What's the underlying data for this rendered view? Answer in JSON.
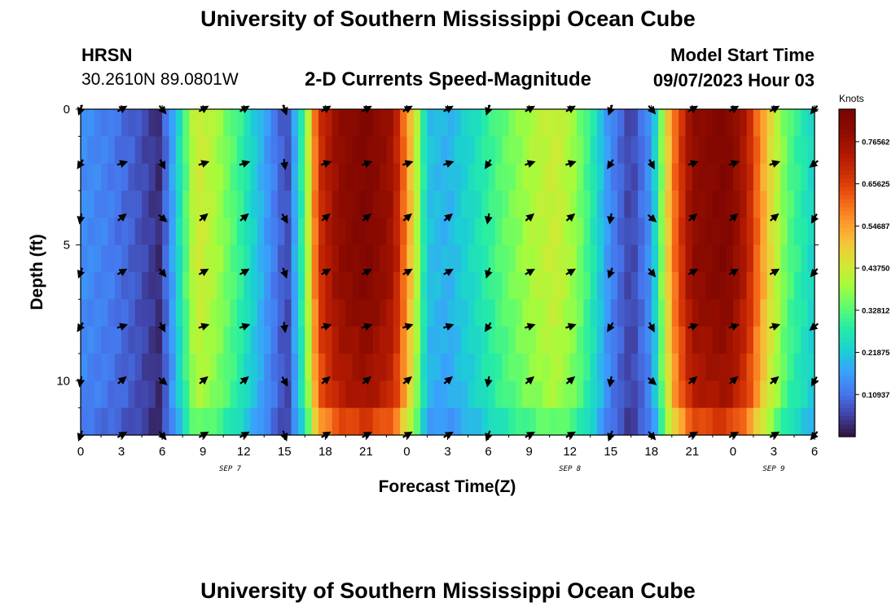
{
  "header": {
    "title": "University of Southern Mississippi Ocean Cube",
    "station": "HRSN",
    "coords": "30.2610N  89.0801W",
    "plot_title": "2-D Currents Speed-Magnitude",
    "model_start_label": "Model Start Time",
    "model_start_value": "09/07/2023 Hour 03"
  },
  "footer": {
    "title": "University of Southern Mississippi Ocean Cube"
  },
  "chart_data": {
    "type": "heatmap",
    "title": "2-D Currents Speed-Magnitude",
    "xlabel": "Forecast Time(Z)",
    "ylabel": "Depth (ft)",
    "x_range_hours": [
      0,
      54
    ],
    "y_range_ft": [
      0,
      12
    ],
    "y_reversed": true,
    "x_ticks": [
      {
        "h": 0,
        "label": "0"
      },
      {
        "h": 3,
        "label": "3"
      },
      {
        "h": 6,
        "label": "6"
      },
      {
        "h": 9,
        "label": "9"
      },
      {
        "h": 12,
        "label": "12"
      },
      {
        "h": 15,
        "label": "15"
      },
      {
        "h": 18,
        "label": "18"
      },
      {
        "h": 21,
        "label": "21"
      },
      {
        "h": 24,
        "label": "0"
      },
      {
        "h": 27,
        "label": "3"
      },
      {
        "h": 30,
        "label": "6"
      },
      {
        "h": 33,
        "label": "9"
      },
      {
        "h": 36,
        "label": "12"
      },
      {
        "h": 39,
        "label": "15"
      },
      {
        "h": 42,
        "label": "18"
      },
      {
        "h": 45,
        "label": "21"
      },
      {
        "h": 48,
        "label": "0"
      },
      {
        "h": 51,
        "label": "3"
      },
      {
        "h": 54,
        "label": "6"
      }
    ],
    "y_ticks": [
      {
        "ft": 0,
        "label": "0"
      },
      {
        "ft": 5,
        "label": "5"
      },
      {
        "ft": 10,
        "label": "10"
      }
    ],
    "date_labels": [
      {
        "h": 11,
        "label": "SEP 7"
      },
      {
        "h": 36,
        "label": "SEP 8"
      },
      {
        "h": 51,
        "label": "SEP 9"
      }
    ],
    "colorbar": {
      "units": "Knots",
      "min": 0,
      "max": 0.85,
      "ticks": [
        0.10937,
        0.21875,
        0.32812,
        0.4375,
        0.54687,
        0.65625,
        0.76562
      ],
      "tick_labels": [
        "0.10937",
        "0.21875",
        "0.32812",
        "0.43750",
        "0.54687",
        "0.65625",
        "0.76562"
      ]
    },
    "speed_profile_knots": [
      {
        "h": 0,
        "v": 0.14
      },
      {
        "h": 2,
        "v": 0.12
      },
      {
        "h": 4,
        "v": 0.08
      },
      {
        "h": 5.8,
        "v": 0.03
      },
      {
        "h": 7,
        "v": 0.2
      },
      {
        "h": 8.5,
        "v": 0.43
      },
      {
        "h": 10,
        "v": 0.38
      },
      {
        "h": 11.5,
        "v": 0.3
      },
      {
        "h": 13,
        "v": 0.2
      },
      {
        "h": 14.5,
        "v": 0.1
      },
      {
        "h": 15.2,
        "v": 0.06
      },
      {
        "h": 16.5,
        "v": 0.32
      },
      {
        "h": 17.5,
        "v": 0.65
      },
      {
        "h": 19,
        "v": 0.76
      },
      {
        "h": 21,
        "v": 0.8
      },
      {
        "h": 23,
        "v": 0.73
      },
      {
        "h": 24.5,
        "v": 0.45
      },
      {
        "h": 25.5,
        "v": 0.2
      },
      {
        "h": 27,
        "v": 0.18
      },
      {
        "h": 29,
        "v": 0.24
      },
      {
        "h": 31,
        "v": 0.32
      },
      {
        "h": 33,
        "v": 0.38
      },
      {
        "h": 35,
        "v": 0.42
      },
      {
        "h": 36.5,
        "v": 0.36
      },
      {
        "h": 37.5,
        "v": 0.28
      },
      {
        "h": 39,
        "v": 0.13
      },
      {
        "h": 40.5,
        "v": 0.05
      },
      {
        "h": 42,
        "v": 0.15
      },
      {
        "h": 43.5,
        "v": 0.55
      },
      {
        "h": 45,
        "v": 0.76
      },
      {
        "h": 47.5,
        "v": 0.8
      },
      {
        "h": 49,
        "v": 0.7
      },
      {
        "h": 50.5,
        "v": 0.48
      },
      {
        "h": 52,
        "v": 0.32
      },
      {
        "h": 54,
        "v": 0.22
      }
    ],
    "vector_hours": [
      0,
      3,
      6,
      9,
      12,
      15,
      18,
      21,
      24,
      27,
      30,
      33,
      36,
      39,
      42,
      45,
      48,
      51,
      54
    ],
    "vector_depths_ft": [
      0,
      2,
      4,
      6,
      8,
      10,
      12
    ],
    "vector_directions_deg": [
      200,
      60,
      140,
      60,
      60,
      160,
      60,
      60,
      60,
      60,
      200,
      60,
      60,
      200,
      140,
      60,
      60,
      60,
      220
    ]
  }
}
